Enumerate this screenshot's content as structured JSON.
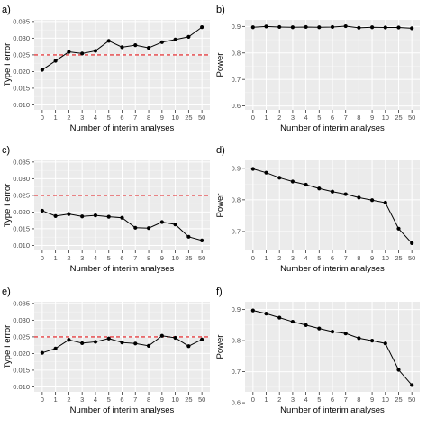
{
  "style": {
    "panel_bg": "#ebebeb",
    "grid_major": "#ffffff",
    "line_color": "#000000",
    "ref_line_color": "#e41a1c"
  },
  "chart_data": [
    {
      "type": "line",
      "panel_label": "a)",
      "xlabel": "Number of interim analyses",
      "ylabel": "Type I error",
      "categories": [
        "0",
        "1",
        "2",
        "3",
        "4",
        "5",
        "6",
        "7",
        "8",
        "9",
        "10",
        "25",
        "50"
      ],
      "values": [
        0.0205,
        0.0232,
        0.0259,
        0.0254,
        0.0262,
        0.0292,
        0.0273,
        0.0279,
        0.0271,
        0.0288,
        0.0296,
        0.0304,
        0.0333
      ],
      "ylim": [
        0.0085,
        0.0355
      ],
      "yticks": [
        0.01,
        0.015,
        0.02,
        0.025,
        0.03,
        0.035
      ],
      "ytick_labels": [
        "0.010",
        "0.015",
        "0.020",
        "0.025",
        "0.030",
        "0.035"
      ],
      "reference_line": 0.025,
      "grid": true
    },
    {
      "type": "line",
      "panel_label": "b)",
      "xlabel": "Number of interim analyses",
      "ylabel": "Power",
      "categories": [
        "0",
        "1",
        "2",
        "3",
        "4",
        "5",
        "6",
        "7",
        "8",
        "9",
        "10",
        "25",
        "50"
      ],
      "values": [
        0.897,
        0.9,
        0.898,
        0.897,
        0.898,
        0.897,
        0.898,
        0.901,
        0.895,
        0.897,
        0.896,
        0.896,
        0.893
      ],
      "ylim": [
        0.585,
        0.925
      ],
      "yticks": [
        0.6,
        0.7,
        0.8,
        0.9
      ],
      "ytick_labels": [
        "0.6",
        "0.7",
        "0.8",
        "0.9"
      ],
      "grid": true
    },
    {
      "type": "line",
      "panel_label": "c)",
      "xlabel": "Number of interim analyses",
      "ylabel": "Type I error",
      "categories": [
        "0",
        "1",
        "2",
        "3",
        "4",
        "5",
        "6",
        "7",
        "8",
        "9",
        "10",
        "25",
        "50"
      ],
      "values": [
        0.0204,
        0.0188,
        0.0194,
        0.0187,
        0.019,
        0.0186,
        0.0183,
        0.0153,
        0.0152,
        0.017,
        0.0163,
        0.0126,
        0.0115
      ],
      "ylim": [
        0.0085,
        0.0355
      ],
      "yticks": [
        0.01,
        0.015,
        0.02,
        0.025,
        0.03,
        0.035
      ],
      "ytick_labels": [
        "0.010",
        "0.015",
        "0.020",
        "0.025",
        "0.030",
        "0.035"
      ],
      "reference_line": 0.025,
      "grid": true
    },
    {
      "type": "line",
      "panel_label": "d)",
      "xlabel": "Number of interim analyses",
      "ylabel": "Power",
      "categories": [
        "0",
        "1",
        "2",
        "3",
        "4",
        "5",
        "6",
        "7",
        "8",
        "9",
        "10",
        "25",
        "50"
      ],
      "values": [
        0.898,
        0.886,
        0.87,
        0.858,
        0.848,
        0.836,
        0.826,
        0.818,
        0.807,
        0.799,
        0.791,
        0.709,
        0.663
      ],
      "ylim": [
        0.64,
        0.925
      ],
      "yticks": [
        0.7,
        0.8,
        0.9
      ],
      "ytick_labels": [
        "0.7",
        "0.8",
        "0.9"
      ],
      "grid": true
    },
    {
      "type": "line",
      "panel_label": "e)",
      "xlabel": "Number of interim analyses",
      "ylabel": "Type I error",
      "categories": [
        "0",
        "1",
        "2",
        "3",
        "4",
        "5",
        "6",
        "7",
        "8",
        "9",
        "10",
        "25",
        "50"
      ],
      "values": [
        0.0202,
        0.0215,
        0.0241,
        0.0231,
        0.0235,
        0.0245,
        0.0233,
        0.023,
        0.0223,
        0.0253,
        0.0247,
        0.0222,
        0.0242
      ],
      "ylim": [
        0.0085,
        0.0355
      ],
      "yticks": [
        0.01,
        0.015,
        0.02,
        0.025,
        0.03,
        0.035
      ],
      "ytick_labels": [
        "0.010",
        "0.015",
        "0.020",
        "0.025",
        "0.030",
        "0.035"
      ],
      "reference_line": 0.025,
      "grid": true
    },
    {
      "type": "line",
      "panel_label": "f)",
      "xlabel": "Number of interim analyses",
      "ylabel": "Power",
      "categories": [
        "0",
        "1",
        "2",
        "3",
        "4",
        "5",
        "6",
        "7",
        "8",
        "9",
        "10",
        "25",
        "50"
      ],
      "values": [
        0.897,
        0.887,
        0.874,
        0.861,
        0.85,
        0.839,
        0.829,
        0.823,
        0.808,
        0.8,
        0.791,
        0.706,
        0.657
      ],
      "ylim": [
        0.635,
        0.925
      ],
      "yticks": [
        0.6,
        0.7,
        0.8,
        0.9
      ],
      "ytick_labels": [
        "0.6",
        "0.7",
        "0.8",
        "0.9"
      ],
      "grid": true
    }
  ]
}
